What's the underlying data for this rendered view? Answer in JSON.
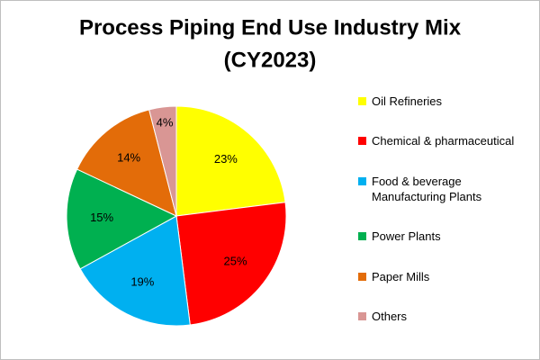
{
  "chart_data": {
    "type": "pie",
    "title": [
      "Process Piping End Use Industry Mix",
      "(CY2023)"
    ],
    "categories": [
      "Oil Refineries",
      "Chemical & pharmaceutical",
      "Food & beverage Manufacturing Plants",
      "Power Plants",
      "Paper Mills",
      "Others"
    ],
    "values": [
      23,
      25,
      19,
      15,
      14,
      4
    ],
    "value_labels": [
      "23%",
      "25%",
      "19%",
      "15%",
      "14%",
      "4%"
    ],
    "colors": [
      "#ffff00",
      "#ff0000",
      "#00b0f0",
      "#00b050",
      "#e36c09",
      "#d99694"
    ],
    "legend": "right"
  }
}
